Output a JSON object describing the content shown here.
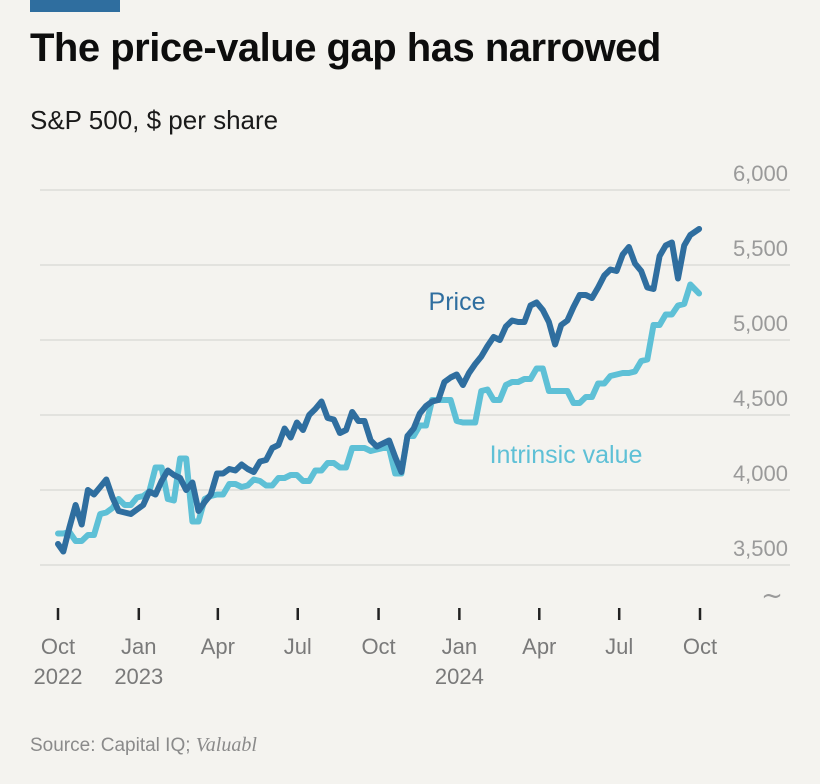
{
  "header": {
    "title": "The price-value gap has narrowed",
    "subtitle": "S&P 500, $ per share"
  },
  "footer": {
    "source_prefix": "Source: Capital IQ; ",
    "source_italic": "Valuabl"
  },
  "colors": {
    "accent": "#2f6e9f",
    "price": "#2f6e9f",
    "intrinsic": "#5ec0d6",
    "grid": "#dcdcd8",
    "axis_text": "#9a9a9a",
    "background": "#f4f3ef"
  },
  "chart_data": {
    "type": "line",
    "ylim": [
      3300,
      6000
    ],
    "yticks": [
      3500,
      4000,
      4500,
      5000,
      5500,
      6000
    ],
    "ytick_labels": [
      "3,500",
      "4,000",
      "4,500",
      "5,000",
      "5,500",
      "6,000"
    ],
    "axis_break": "~",
    "grid": true,
    "xticks": [
      {
        "date": "2022-10-01",
        "line1": "Oct",
        "line2": "2022"
      },
      {
        "date": "2023-01-01",
        "line1": "Jan",
        "line2": "2023"
      },
      {
        "date": "2023-04-01",
        "line1": "Apr",
        "line2": ""
      },
      {
        "date": "2023-07-01",
        "line1": "Jul",
        "line2": ""
      },
      {
        "date": "2023-10-01",
        "line1": "Oct",
        "line2": ""
      },
      {
        "date": "2024-01-01",
        "line1": "Jan",
        "line2": "2024"
      },
      {
        "date": "2024-04-01",
        "line1": "Apr",
        "line2": ""
      },
      {
        "date": "2024-07-01",
        "line1": "Jul",
        "line2": ""
      },
      {
        "date": "2024-10-01",
        "line1": "Oct",
        "line2": ""
      }
    ],
    "series": [
      {
        "name": "Price",
        "color": "#2f6e9f",
        "points": [
          [
            "2022-10-01",
            3640
          ],
          [
            "2022-10-07",
            3590
          ],
          [
            "2022-10-14",
            3750
          ],
          [
            "2022-10-21",
            3900
          ],
          [
            "2022-10-28",
            3770
          ],
          [
            "2022-11-04",
            4000
          ],
          [
            "2022-11-11",
            3970
          ],
          [
            "2022-11-18",
            4020
          ],
          [
            "2022-11-25",
            4070
          ],
          [
            "2022-12-02",
            3950
          ],
          [
            "2022-12-09",
            3860
          ],
          [
            "2022-12-16",
            3850
          ],
          [
            "2022-12-23",
            3840
          ],
          [
            "2022-12-30",
            3870
          ],
          [
            "2023-01-06",
            3900
          ],
          [
            "2023-01-13",
            3990
          ],
          [
            "2023-01-20",
            3970
          ],
          [
            "2023-01-27",
            4060
          ],
          [
            "2023-02-03",
            4130
          ],
          [
            "2023-02-10",
            4100
          ],
          [
            "2023-02-17",
            4080
          ],
          [
            "2023-02-24",
            4000
          ],
          [
            "2023-03-03",
            4050
          ],
          [
            "2023-03-10",
            3860
          ],
          [
            "2023-03-17",
            3920
          ],
          [
            "2023-03-24",
            3970
          ],
          [
            "2023-03-31",
            4110
          ],
          [
            "2023-04-07",
            4110
          ],
          [
            "2023-04-14",
            4140
          ],
          [
            "2023-04-21",
            4130
          ],
          [
            "2023-04-28",
            4170
          ],
          [
            "2023-05-05",
            4140
          ],
          [
            "2023-05-12",
            4120
          ],
          [
            "2023-05-19",
            4190
          ],
          [
            "2023-05-26",
            4200
          ],
          [
            "2023-06-02",
            4280
          ],
          [
            "2023-06-09",
            4300
          ],
          [
            "2023-06-16",
            4410
          ],
          [
            "2023-06-23",
            4350
          ],
          [
            "2023-06-30",
            4450
          ],
          [
            "2023-07-07",
            4400
          ],
          [
            "2023-07-14",
            4500
          ],
          [
            "2023-07-21",
            4540
          ],
          [
            "2023-07-28",
            4590
          ],
          [
            "2023-08-04",
            4480
          ],
          [
            "2023-08-11",
            4470
          ],
          [
            "2023-08-18",
            4380
          ],
          [
            "2023-08-25",
            4400
          ],
          [
            "2023-09-01",
            4520
          ],
          [
            "2023-09-08",
            4460
          ],
          [
            "2023-09-15",
            4460
          ],
          [
            "2023-09-22",
            4330
          ],
          [
            "2023-09-29",
            4290
          ],
          [
            "2023-10-06",
            4310
          ],
          [
            "2023-10-13",
            4330
          ],
          [
            "2023-10-20",
            4220
          ],
          [
            "2023-10-27",
            4120
          ],
          [
            "2023-11-03",
            4360
          ],
          [
            "2023-11-10",
            4410
          ],
          [
            "2023-11-17",
            4510
          ],
          [
            "2023-11-24",
            4560
          ],
          [
            "2023-12-01",
            4590
          ],
          [
            "2023-12-08",
            4600
          ],
          [
            "2023-12-15",
            4720
          ],
          [
            "2023-12-22",
            4750
          ],
          [
            "2023-12-29",
            4770
          ],
          [
            "2024-01-05",
            4700
          ],
          [
            "2024-01-12",
            4780
          ],
          [
            "2024-01-19",
            4840
          ],
          [
            "2024-01-26",
            4890
          ],
          [
            "2024-02-02",
            4960
          ],
          [
            "2024-02-09",
            5020
          ],
          [
            "2024-02-16",
            5000
          ],
          [
            "2024-02-23",
            5090
          ],
          [
            "2024-03-01",
            5130
          ],
          [
            "2024-03-08",
            5120
          ],
          [
            "2024-03-15",
            5120
          ],
          [
            "2024-03-22",
            5230
          ],
          [
            "2024-03-29",
            5250
          ],
          [
            "2024-04-05",
            5200
          ],
          [
            "2024-04-12",
            5120
          ],
          [
            "2024-04-19",
            4970
          ],
          [
            "2024-04-26",
            5100
          ],
          [
            "2024-05-03",
            5130
          ],
          [
            "2024-05-10",
            5220
          ],
          [
            "2024-05-17",
            5300
          ],
          [
            "2024-05-24",
            5300
          ],
          [
            "2024-05-31",
            5280
          ],
          [
            "2024-06-07",
            5350
          ],
          [
            "2024-06-14",
            5430
          ],
          [
            "2024-06-21",
            5470
          ],
          [
            "2024-06-28",
            5460
          ],
          [
            "2024-07-05",
            5570
          ],
          [
            "2024-07-12",
            5620
          ],
          [
            "2024-07-19",
            5510
          ],
          [
            "2024-07-26",
            5460
          ],
          [
            "2024-08-02",
            5350
          ],
          [
            "2024-08-09",
            5340
          ],
          [
            "2024-08-16",
            5560
          ],
          [
            "2024-08-23",
            5630
          ],
          [
            "2024-08-30",
            5650
          ],
          [
            "2024-09-06",
            5410
          ],
          [
            "2024-09-13",
            5630
          ],
          [
            "2024-09-20",
            5700
          ],
          [
            "2024-09-30",
            5740
          ]
        ]
      },
      {
        "name": "Intrinsic value",
        "color": "#5ec0d6",
        "points": [
          [
            "2022-10-01",
            3710
          ],
          [
            "2022-10-07",
            3710
          ],
          [
            "2022-10-14",
            3720
          ],
          [
            "2022-10-21",
            3660
          ],
          [
            "2022-10-28",
            3660
          ],
          [
            "2022-11-04",
            3700
          ],
          [
            "2022-11-11",
            3700
          ],
          [
            "2022-11-18",
            3840
          ],
          [
            "2022-11-25",
            3850
          ],
          [
            "2022-12-02",
            3880
          ],
          [
            "2022-12-09",
            3940
          ],
          [
            "2022-12-16",
            3900
          ],
          [
            "2022-12-23",
            3900
          ],
          [
            "2022-12-30",
            3950
          ],
          [
            "2023-01-06",
            3960
          ],
          [
            "2023-01-13",
            3990
          ],
          [
            "2023-01-20",
            4150
          ],
          [
            "2023-01-27",
            4150
          ],
          [
            "2023-02-03",
            3940
          ],
          [
            "2023-02-10",
            3930
          ],
          [
            "2023-02-17",
            4210
          ],
          [
            "2023-02-24",
            4210
          ],
          [
            "2023-03-03",
            3790
          ],
          [
            "2023-03-10",
            3790
          ],
          [
            "2023-03-17",
            3940
          ],
          [
            "2023-03-24",
            3960
          ],
          [
            "2023-03-31",
            3970
          ],
          [
            "2023-04-07",
            3970
          ],
          [
            "2023-04-14",
            4040
          ],
          [
            "2023-04-21",
            4040
          ],
          [
            "2023-04-28",
            4020
          ],
          [
            "2023-05-05",
            4030
          ],
          [
            "2023-05-12",
            4070
          ],
          [
            "2023-05-19",
            4060
          ],
          [
            "2023-05-26",
            4030
          ],
          [
            "2023-06-02",
            4030
          ],
          [
            "2023-06-09",
            4080
          ],
          [
            "2023-06-16",
            4080
          ],
          [
            "2023-06-23",
            4100
          ],
          [
            "2023-06-30",
            4100
          ],
          [
            "2023-07-07",
            4060
          ],
          [
            "2023-07-14",
            4060
          ],
          [
            "2023-07-21",
            4130
          ],
          [
            "2023-07-28",
            4130
          ],
          [
            "2023-08-04",
            4180
          ],
          [
            "2023-08-11",
            4180
          ],
          [
            "2023-08-18",
            4150
          ],
          [
            "2023-08-25",
            4150
          ],
          [
            "2023-09-01",
            4280
          ],
          [
            "2023-09-08",
            4280
          ],
          [
            "2023-09-15",
            4280
          ],
          [
            "2023-09-22",
            4260
          ],
          [
            "2023-09-29",
            4270
          ],
          [
            "2023-10-06",
            4280
          ],
          [
            "2023-10-13",
            4280
          ],
          [
            "2023-10-20",
            4110
          ],
          [
            "2023-10-27",
            4110
          ],
          [
            "2023-11-03",
            4360
          ],
          [
            "2023-11-10",
            4360
          ],
          [
            "2023-11-17",
            4430
          ],
          [
            "2023-11-24",
            4430
          ],
          [
            "2023-12-01",
            4600
          ],
          [
            "2023-12-08",
            4600
          ],
          [
            "2023-12-15",
            4600
          ],
          [
            "2023-12-22",
            4600
          ],
          [
            "2023-12-29",
            4460
          ],
          [
            "2024-01-05",
            4450
          ],
          [
            "2024-01-12",
            4450
          ],
          [
            "2024-01-19",
            4450
          ],
          [
            "2024-01-26",
            4660
          ],
          [
            "2024-02-02",
            4670
          ],
          [
            "2024-02-09",
            4600
          ],
          [
            "2024-02-16",
            4600
          ],
          [
            "2024-02-23",
            4700
          ],
          [
            "2024-03-01",
            4720
          ],
          [
            "2024-03-08",
            4720
          ],
          [
            "2024-03-15",
            4740
          ],
          [
            "2024-03-22",
            4740
          ],
          [
            "2024-03-29",
            4810
          ],
          [
            "2024-04-05",
            4810
          ],
          [
            "2024-04-12",
            4660
          ],
          [
            "2024-04-19",
            4660
          ],
          [
            "2024-04-26",
            4660
          ],
          [
            "2024-05-03",
            4660
          ],
          [
            "2024-05-10",
            4580
          ],
          [
            "2024-05-17",
            4580
          ],
          [
            "2024-05-24",
            4620
          ],
          [
            "2024-05-31",
            4620
          ],
          [
            "2024-06-07",
            4710
          ],
          [
            "2024-06-14",
            4710
          ],
          [
            "2024-06-21",
            4760
          ],
          [
            "2024-06-28",
            4770
          ],
          [
            "2024-07-05",
            4780
          ],
          [
            "2024-07-12",
            4780
          ],
          [
            "2024-07-19",
            4790
          ],
          [
            "2024-07-26",
            4860
          ],
          [
            "2024-08-02",
            4870
          ],
          [
            "2024-08-09",
            5100
          ],
          [
            "2024-08-16",
            5100
          ],
          [
            "2024-08-23",
            5170
          ],
          [
            "2024-08-30",
            5170
          ],
          [
            "2024-09-06",
            5230
          ],
          [
            "2024-09-13",
            5240
          ],
          [
            "2024-09-20",
            5370
          ],
          [
            "2024-09-30",
            5310
          ]
        ]
      }
    ],
    "annotations": [
      {
        "text": "Price",
        "series": "Price"
      },
      {
        "text": "Intrinsic value",
        "series": "Intrinsic value"
      }
    ]
  }
}
